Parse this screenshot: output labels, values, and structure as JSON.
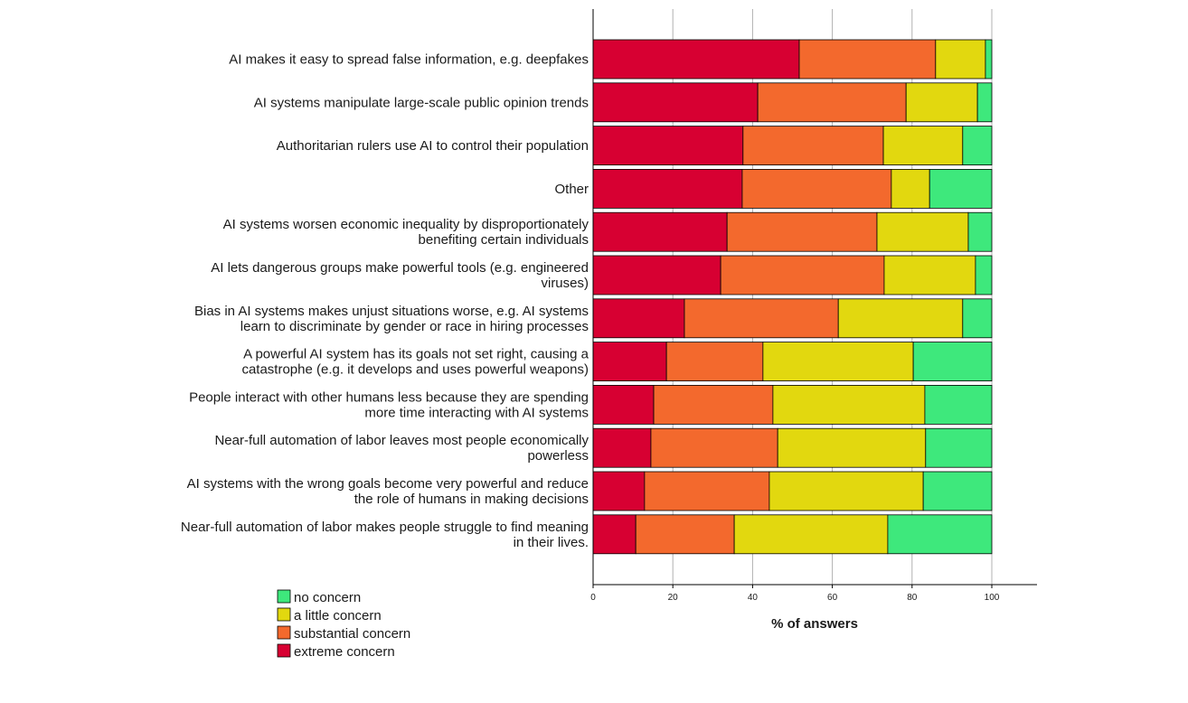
{
  "chart_data": {
    "type": "bar",
    "orientation": "horizontal",
    "stacked": true,
    "xlabel": "% of answers",
    "xlim": [
      0,
      100
    ],
    "xticks": [
      "0",
      "20",
      "40",
      "60",
      "80",
      "100"
    ],
    "grid": true,
    "legend_position": "bottom-left",
    "categories": [
      [
        "AI makes it easy to spread false information, e.g. deepfakes"
      ],
      [
        "AI systems manipulate large-scale public opinion trends"
      ],
      [
        "Authoritarian rulers use AI to control their population"
      ],
      [
        "Other"
      ],
      [
        "AI systems worsen economic inequality by disproportionately",
        "benefiting certain individuals"
      ],
      [
        "AI lets dangerous groups make powerful tools (e.g. engineered",
        "viruses)"
      ],
      [
        "Bias in AI systems makes unjust situations worse, e.g. AI systems",
        "learn to discriminate by gender or race in hiring processes"
      ],
      [
        "A powerful AI system has its goals not set right, causing a",
        "catastrophe (e.g. it develops and uses powerful weapons)"
      ],
      [
        "People interact with other humans less because they are spending",
        "more time interacting with AI systems"
      ],
      [
        "Near-full automation of labor leaves most people economically",
        "powerless"
      ],
      [
        "AI systems with the wrong goals become very powerful and reduce",
        "the role of humans in making decisions"
      ],
      [
        "Near-full automation of labor makes people struggle to find meaning",
        "in their lives."
      ]
    ],
    "series": [
      {
        "name": "extreme concern",
        "color": "#d70032",
        "values": [
          51.7,
          41.3,
          37.6,
          37.4,
          33.6,
          32.0,
          22.9,
          18.4,
          15.2,
          14.5,
          12.9,
          10.7
        ]
      },
      {
        "name": "substantial concern",
        "color": "#f3692d",
        "values": [
          34.2,
          37.2,
          35.2,
          37.4,
          37.6,
          41.0,
          38.6,
          24.2,
          29.9,
          31.8,
          31.3,
          24.7
        ]
      },
      {
        "name": "a little concern",
        "color": "#e2d80f",
        "values": [
          12.5,
          17.9,
          19.9,
          9.6,
          22.9,
          22.9,
          31.2,
          37.7,
          38.1,
          37.1,
          38.6,
          38.5
        ]
      },
      {
        "name": "no concern",
        "color": "#3ee87c",
        "values": [
          1.6,
          3.6,
          7.3,
          15.6,
          5.9,
          4.1,
          7.3,
          19.7,
          16.8,
          16.6,
          17.2,
          26.1
        ]
      }
    ],
    "legend_order": [
      "no concern",
      "a little concern",
      "substantial concern",
      "extreme concern"
    ]
  }
}
